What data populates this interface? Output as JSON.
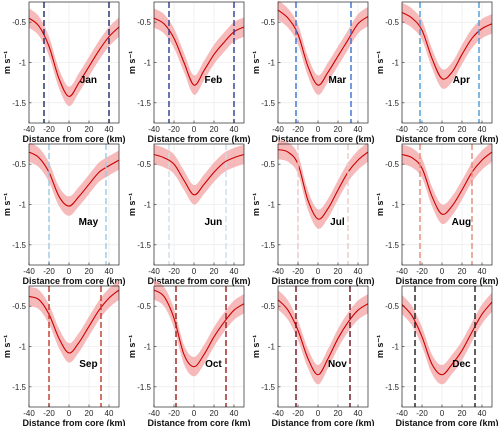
{
  "chart_data": {
    "type": "line",
    "layout": "4x3 small multiples",
    "xlabel": "Distance from core (km)",
    "ylabel": "m s⁻¹",
    "xlim": [
      -40,
      50
    ],
    "ylim": [
      -1.75,
      -0.25
    ],
    "x_ticks": [
      -40,
      -20,
      0,
      20,
      40
    ],
    "y_ticks": [
      -1.5,
      -1,
      -0.5
    ],
    "y_tick_labels": [
      "-1.5",
      "-1",
      "-0.5"
    ],
    "grid": true,
    "band": "shaded ±spread around mean (light red)",
    "line_color": "#cc0000",
    "band_color": "#f4a3a3",
    "x": [
      -40,
      -30,
      -20,
      -10,
      0,
      10,
      20,
      30,
      40,
      50
    ],
    "panels": [
      {
        "month": "Jan",
        "values": [
          -0.45,
          -0.55,
          -0.8,
          -1.2,
          -1.42,
          -1.25,
          -1.05,
          -0.85,
          -0.68,
          -0.56
        ],
        "bounds": [
          -25,
          40
        ],
        "bound_color": "#1a2a66"
      },
      {
        "month": "Feb",
        "values": [
          -0.45,
          -0.52,
          -0.7,
          -1.0,
          -1.28,
          -1.1,
          -0.9,
          -0.75,
          -0.62,
          -0.56
        ],
        "bounds": [
          -25,
          40
        ],
        "bound_color": "#2a3d8f"
      },
      {
        "month": "Mar",
        "values": [
          -0.35,
          -0.45,
          -0.65,
          -1.05,
          -1.28,
          -1.12,
          -0.92,
          -0.72,
          -0.52,
          -0.43
        ],
        "bounds": [
          -22,
          33
        ],
        "bound_color": "#3a6fd0"
      },
      {
        "month": "Apr",
        "values": [
          -0.38,
          -0.45,
          -0.6,
          -0.95,
          -1.2,
          -1.12,
          -0.9,
          -0.7,
          -0.58,
          -0.52
        ],
        "bounds": [
          -22,
          37
        ],
        "bound_color": "#4a9ad6"
      },
      {
        "month": "May",
        "values": [
          -0.35,
          -0.42,
          -0.6,
          -0.9,
          -1.02,
          -0.9,
          -0.75,
          -0.6,
          -0.52,
          -0.45
        ],
        "bounds": [
          -20,
          37
        ],
        "bound_color": "#9dc8e0"
      },
      {
        "month": "Jun",
        "values": [
          -0.38,
          -0.42,
          -0.5,
          -0.7,
          -0.88,
          -0.75,
          -0.6,
          -0.48,
          -0.42,
          -0.38
        ],
        "bounds": [
          -25,
          32
        ],
        "bound_color": "#cfdbe6"
      },
      {
        "month": "Jul",
        "values": [
          -0.32,
          -0.35,
          -0.5,
          -0.95,
          -1.18,
          -1.05,
          -0.82,
          -0.6,
          -0.45,
          -0.35
        ],
        "bounds": [
          -20,
          30
        ],
        "bound_color": "#e9c9c9"
      },
      {
        "month": "Aug",
        "values": [
          -0.38,
          -0.42,
          -0.55,
          -0.9,
          -1.12,
          -1.02,
          -0.82,
          -0.6,
          -0.45,
          -0.35
        ],
        "bounds": [
          -22,
          30
        ],
        "bound_color": "#e28a78"
      },
      {
        "month": "Sep",
        "values": [
          -0.38,
          -0.42,
          -0.6,
          -0.9,
          -1.08,
          -0.95,
          -0.75,
          -0.55,
          -0.4,
          -0.3
        ],
        "bounds": [
          -20,
          32
        ],
        "bound_color": "#c0392b"
      },
      {
        "month": "Oct",
        "values": [
          -0.3,
          -0.38,
          -0.65,
          -1.1,
          -1.25,
          -1.1,
          -0.88,
          -0.7,
          -0.55,
          -0.47
        ],
        "bounds": [
          -18,
          32
        ],
        "bound_color": "#9b1c1c"
      },
      {
        "month": "Nov",
        "values": [
          -0.42,
          -0.55,
          -0.8,
          -1.15,
          -1.35,
          -1.15,
          -0.9,
          -0.7,
          -0.55,
          -0.47
        ],
        "bounds": [
          -22,
          32
        ],
        "bound_color": "#6b1020"
      },
      {
        "month": "Dec",
        "values": [
          -0.48,
          -0.62,
          -0.88,
          -1.22,
          -1.35,
          -1.22,
          -1.05,
          -0.82,
          -0.6,
          -0.45
        ],
        "bounds": [
          -27,
          33
        ],
        "bound_color": "#1c1c1c"
      }
    ]
  }
}
